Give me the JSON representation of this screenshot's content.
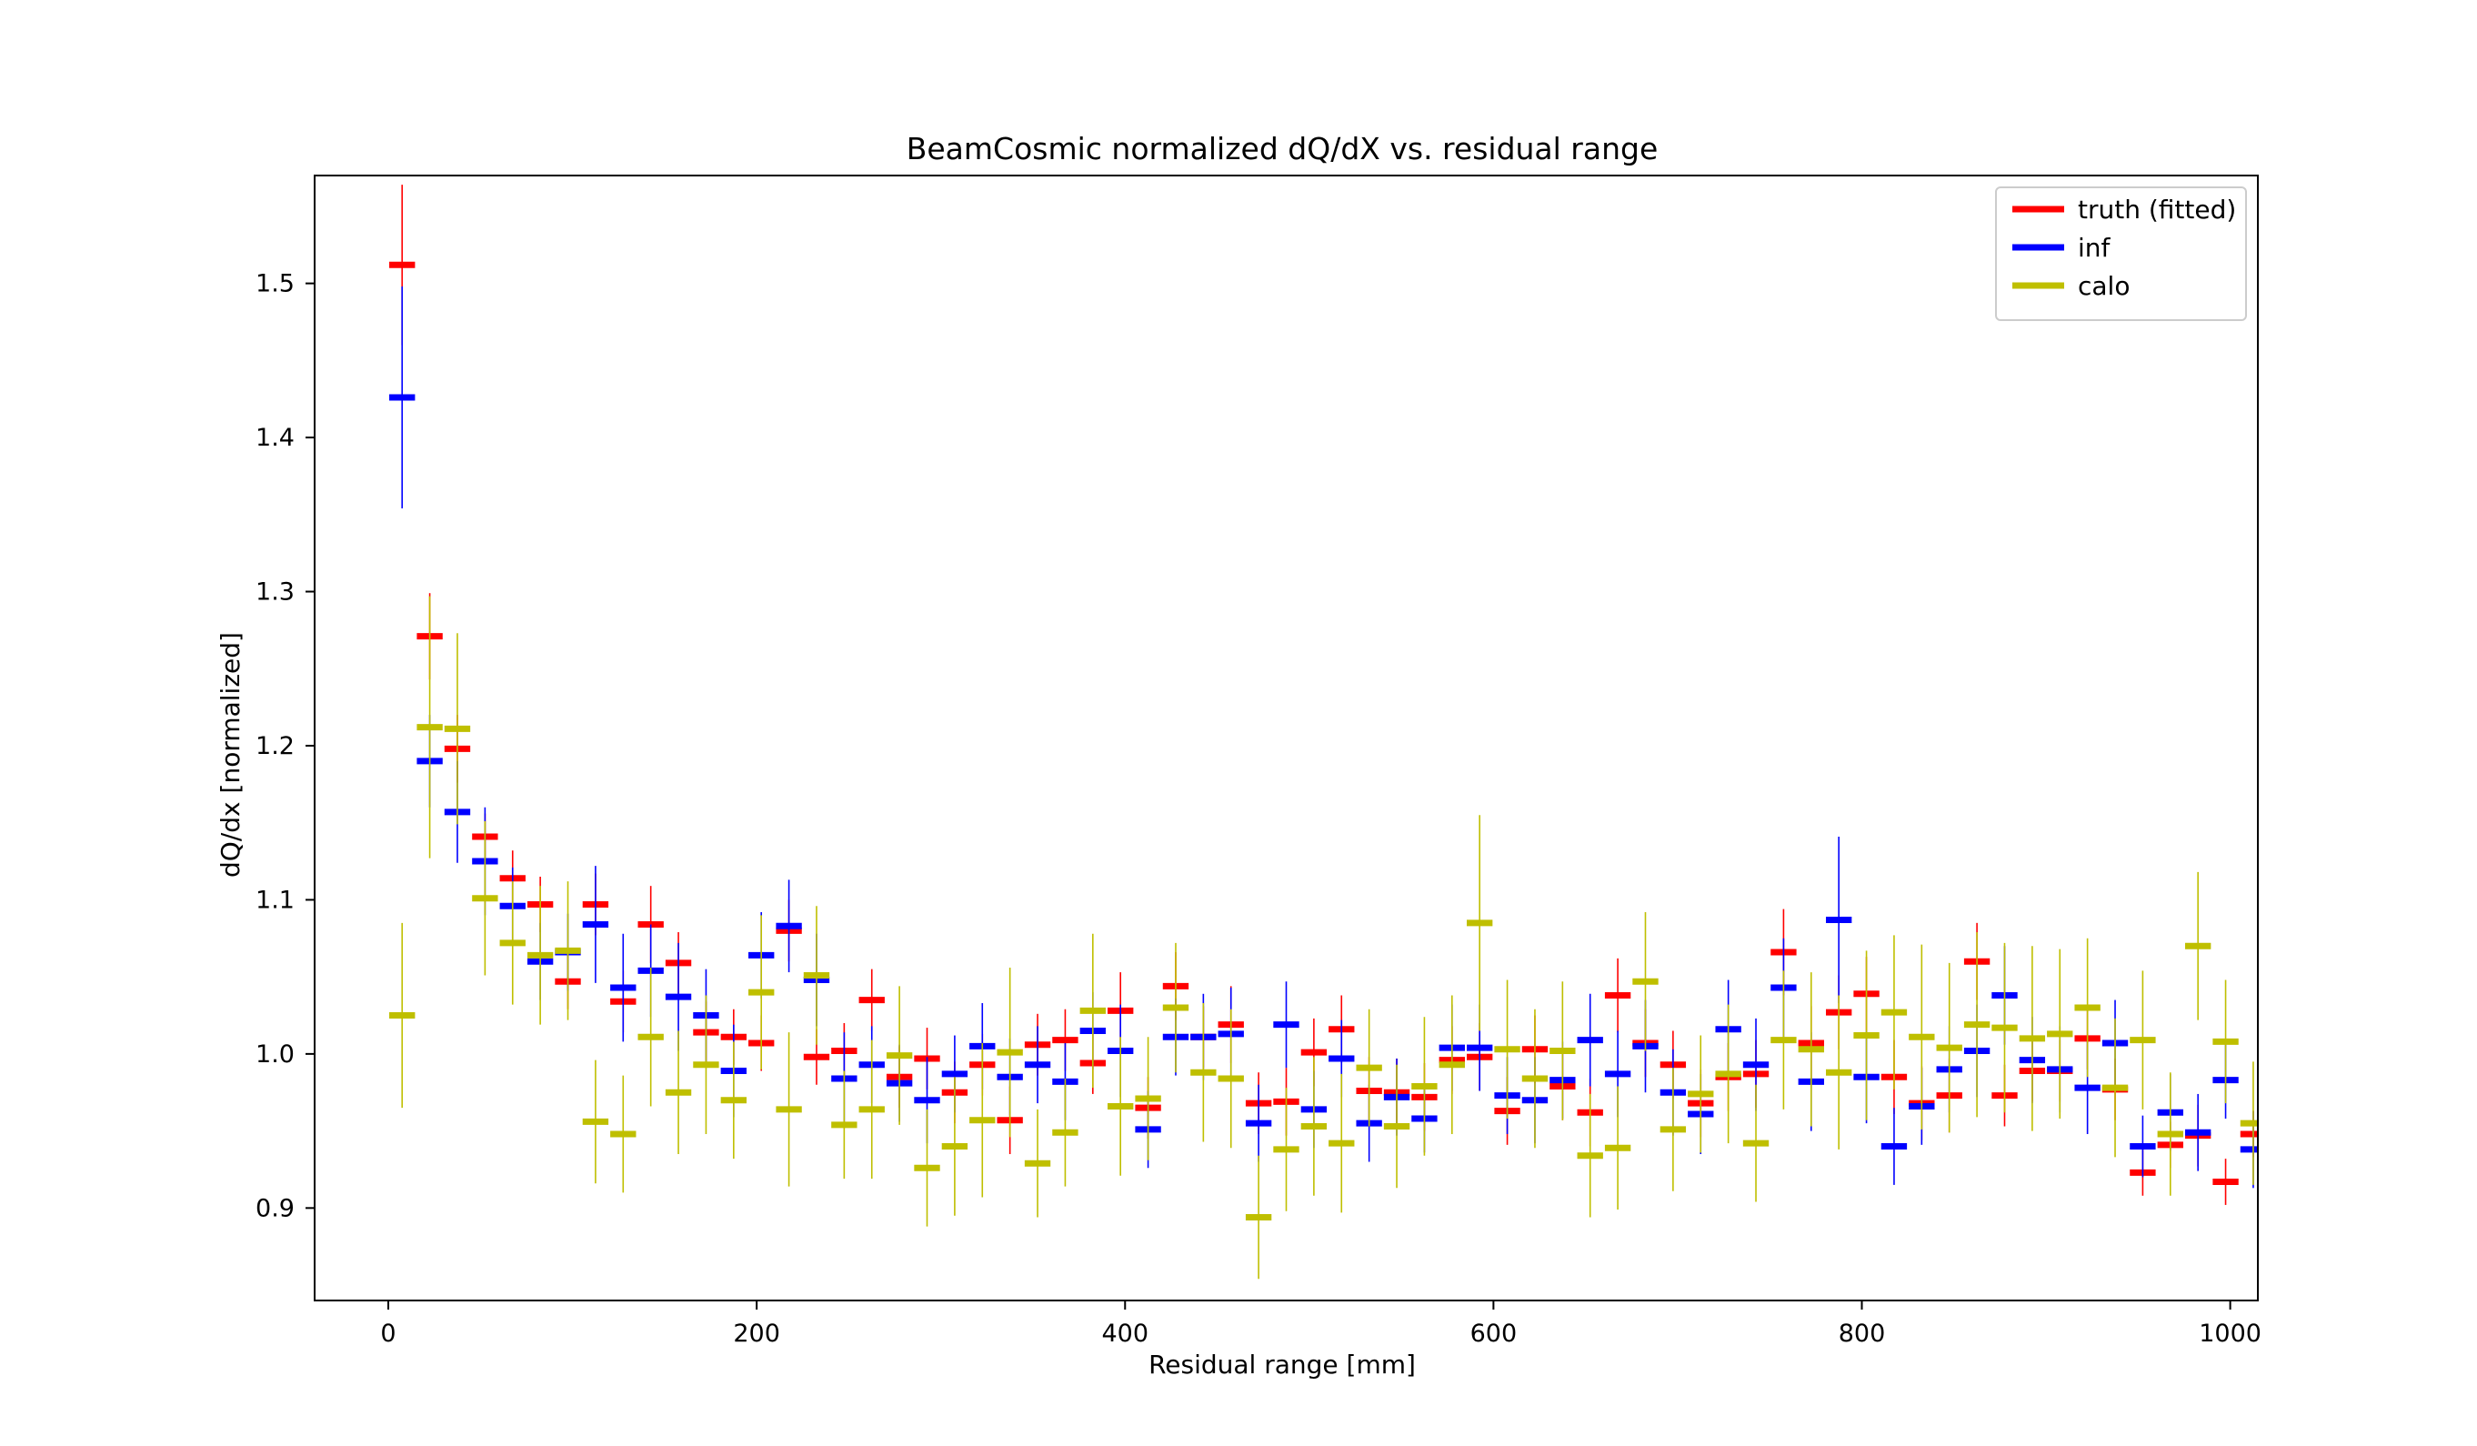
{
  "chart_data": {
    "type": "errorbar",
    "title": "BeamCosmic normalized dQ/dX vs. residual range",
    "xlabel": "Residual range [mm]",
    "ylabel": "dQ/dx [normalized]",
    "xlim": [
      -40,
      1015
    ],
    "ylim": [
      0.84,
      1.57
    ],
    "xticks": [
      0,
      200,
      400,
      600,
      800,
      1000
    ],
    "yticks": [
      0.9,
      1.0,
      1.1,
      1.2,
      1.3,
      1.4,
      1.5
    ],
    "xtick_labels": [
      "0",
      "200",
      "400",
      "600",
      "800",
      "1000"
    ],
    "ytick_labels": [
      "0.9",
      "1.0",
      "1.1",
      "1.2",
      "1.3",
      "1.4",
      "1.5"
    ],
    "bin_half_width": 7,
    "grid": false,
    "legend_position": "top-right",
    "x": [
      7.5,
      22.5,
      37.5,
      52.5,
      67.5,
      82.5,
      97.5,
      112.5,
      127.5,
      142.5,
      157.5,
      172.5,
      187.5,
      202.5,
      217.5,
      232.5,
      247.5,
      262.5,
      277.5,
      292.5,
      307.5,
      322.5,
      337.5,
      352.5,
      367.5,
      382.5,
      397.5,
      412.5,
      427.5,
      442.5,
      457.5,
      472.5,
      487.5,
      502.5,
      517.5,
      532.5,
      547.5,
      562.5,
      577.5,
      592.5,
      607.5,
      622.5,
      637.5,
      652.5,
      667.5,
      682.5,
      697.5,
      712.5,
      727.5,
      742.5,
      757.5,
      772.5,
      787.5,
      802.5,
      817.5,
      832.5,
      847.5,
      862.5,
      877.5,
      892.5,
      907.5,
      922.5,
      937.5,
      952.5,
      967.5,
      982.5,
      997.5,
      1012.5
    ],
    "series": [
      {
        "name": "truth (fitted)",
        "color": "#ff0000",
        "y": [
          1.512,
          1.271,
          1.198,
          1.141,
          1.114,
          1.097,
          1.047,
          1.097,
          1.034,
          1.084,
          1.059,
          1.014,
          1.011,
          1.007,
          1.08,
          0.998,
          1.002,
          1.035,
          0.985,
          0.997,
          0.975,
          0.993,
          0.957,
          1.006,
          1.009,
          0.994,
          1.028,
          0.965,
          1.044,
          1.011,
          1.019,
          0.968,
          0.969,
          1.001,
          1.016,
          0.976,
          0.975,
          0.972,
          0.996,
          0.998,
          0.963,
          1.003,
          0.979,
          0.962,
          1.038,
          1.007,
          0.993,
          0.968,
          0.985,
          0.987,
          1.066,
          1.007,
          1.027,
          1.039,
          0.985,
          0.968,
          0.973,
          1.06,
          0.973,
          0.989,
          0.989,
          1.01,
          0.977,
          0.923,
          0.941,
          0.947,
          0.917,
          0.948
        ],
        "err": [
          0.052,
          0.028,
          0.022,
          0.015,
          0.018,
          0.018,
          0.018,
          0.02,
          0.02,
          0.025,
          0.02,
          0.02,
          0.018,
          0.018,
          0.02,
          0.018,
          0.018,
          0.02,
          0.02,
          0.02,
          0.02,
          0.02,
          0.022,
          0.02,
          0.02,
          0.02,
          0.025,
          0.02,
          0.022,
          0.02,
          0.025,
          0.02,
          0.022,
          0.022,
          0.022,
          0.022,
          0.022,
          0.022,
          0.022,
          0.022,
          0.022,
          0.022,
          0.022,
          0.022,
          0.024,
          0.022,
          0.022,
          0.022,
          0.022,
          0.022,
          0.028,
          0.024,
          0.024,
          0.024,
          0.024,
          0.024,
          0.024,
          0.025,
          0.02,
          0.02,
          0.02,
          0.02,
          0.02,
          0.015,
          0.015,
          0.02,
          0.015,
          0.015
        ]
      },
      {
        "name": "inf",
        "color": "#0000ff",
        "y": [
          1.426,
          1.19,
          1.157,
          1.125,
          1.096,
          1.06,
          1.066,
          1.084,
          1.043,
          1.054,
          1.037,
          1.025,
          0.989,
          1.064,
          1.083,
          1.048,
          0.984,
          0.993,
          0.981,
          0.97,
          0.987,
          1.005,
          0.985,
          0.993,
          0.982,
          1.015,
          1.002,
          0.951,
          1.011,
          1.011,
          1.013,
          0.955,
          1.019,
          0.964,
          0.997,
          0.955,
          0.972,
          0.958,
          1.004,
          1.004,
          0.973,
          0.97,
          0.983,
          1.009,
          0.987,
          1.005,
          0.975,
          0.961,
          1.016,
          0.993,
          1.043,
          0.982,
          1.087,
          0.985,
          0.94,
          0.966,
          0.99,
          1.002,
          1.038,
          0.996,
          0.99,
          0.978,
          1.007,
          0.94,
          0.962,
          0.949,
          0.983,
          0.938
        ],
        "err": [
          0.072,
          0.03,
          0.033,
          0.035,
          0.025,
          0.025,
          0.025,
          0.038,
          0.035,
          0.03,
          0.035,
          0.03,
          0.03,
          0.028,
          0.03,
          0.03,
          0.03,
          0.025,
          0.025,
          0.028,
          0.025,
          0.028,
          0.025,
          0.025,
          0.025,
          0.025,
          0.03,
          0.025,
          0.025,
          0.028,
          0.03,
          0.025,
          0.028,
          0.025,
          0.025,
          0.025,
          0.025,
          0.022,
          0.028,
          0.028,
          0.025,
          0.028,
          0.025,
          0.03,
          0.028,
          0.03,
          0.028,
          0.026,
          0.032,
          0.03,
          0.032,
          0.032,
          0.054,
          0.03,
          0.025,
          0.025,
          0.028,
          0.03,
          0.032,
          0.028,
          0.028,
          0.03,
          0.028,
          0.02,
          0.025,
          0.025,
          0.025,
          0.025
        ]
      },
      {
        "name": "calo",
        "color": "#bfbf00",
        "y": [
          1.025,
          1.212,
          1.211,
          1.101,
          1.072,
          1.064,
          1.067,
          0.956,
          0.948,
          1.011,
          0.975,
          0.993,
          0.97,
          1.04,
          0.964,
          1.051,
          0.954,
          0.964,
          0.999,
          0.926,
          0.94,
          0.957,
          1.001,
          0.929,
          0.949,
          1.028,
          0.966,
          0.971,
          1.03,
          0.988,
          0.984,
          0.894,
          0.938,
          0.953,
          0.942,
          0.991,
          0.953,
          0.979,
          0.993,
          1.085,
          1.003,
          0.984,
          1.002,
          0.934,
          0.939,
          1.047,
          0.951,
          0.974,
          0.987,
          0.942,
          1.009,
          1.003,
          0.988,
          1.012,
          1.027,
          1.011,
          1.004,
          1.019,
          1.017,
          1.01,
          1.013,
          1.03,
          0.978,
          1.009,
          0.948,
          1.07,
          1.008,
          0.955
        ],
        "err": [
          0.06,
          0.085,
          0.062,
          0.05,
          0.04,
          0.045,
          0.045,
          0.04,
          0.038,
          0.045,
          0.04,
          0.045,
          0.038,
          0.05,
          0.05,
          0.045,
          0.035,
          0.045,
          0.045,
          0.038,
          0.045,
          0.05,
          0.055,
          0.035,
          0.035,
          0.05,
          0.045,
          0.04,
          0.042,
          0.045,
          0.045,
          0.04,
          0.04,
          0.045,
          0.045,
          0.038,
          0.04,
          0.045,
          0.045,
          0.07,
          0.045,
          0.045,
          0.045,
          0.04,
          0.04,
          0.045,
          0.04,
          0.038,
          0.045,
          0.038,
          0.045,
          0.05,
          0.05,
          0.055,
          0.05,
          0.06,
          0.055,
          0.06,
          0.055,
          0.06,
          0.055,
          0.045,
          0.045,
          0.045,
          0.04,
          0.048,
          0.04,
          0.04
        ]
      }
    ]
  }
}
